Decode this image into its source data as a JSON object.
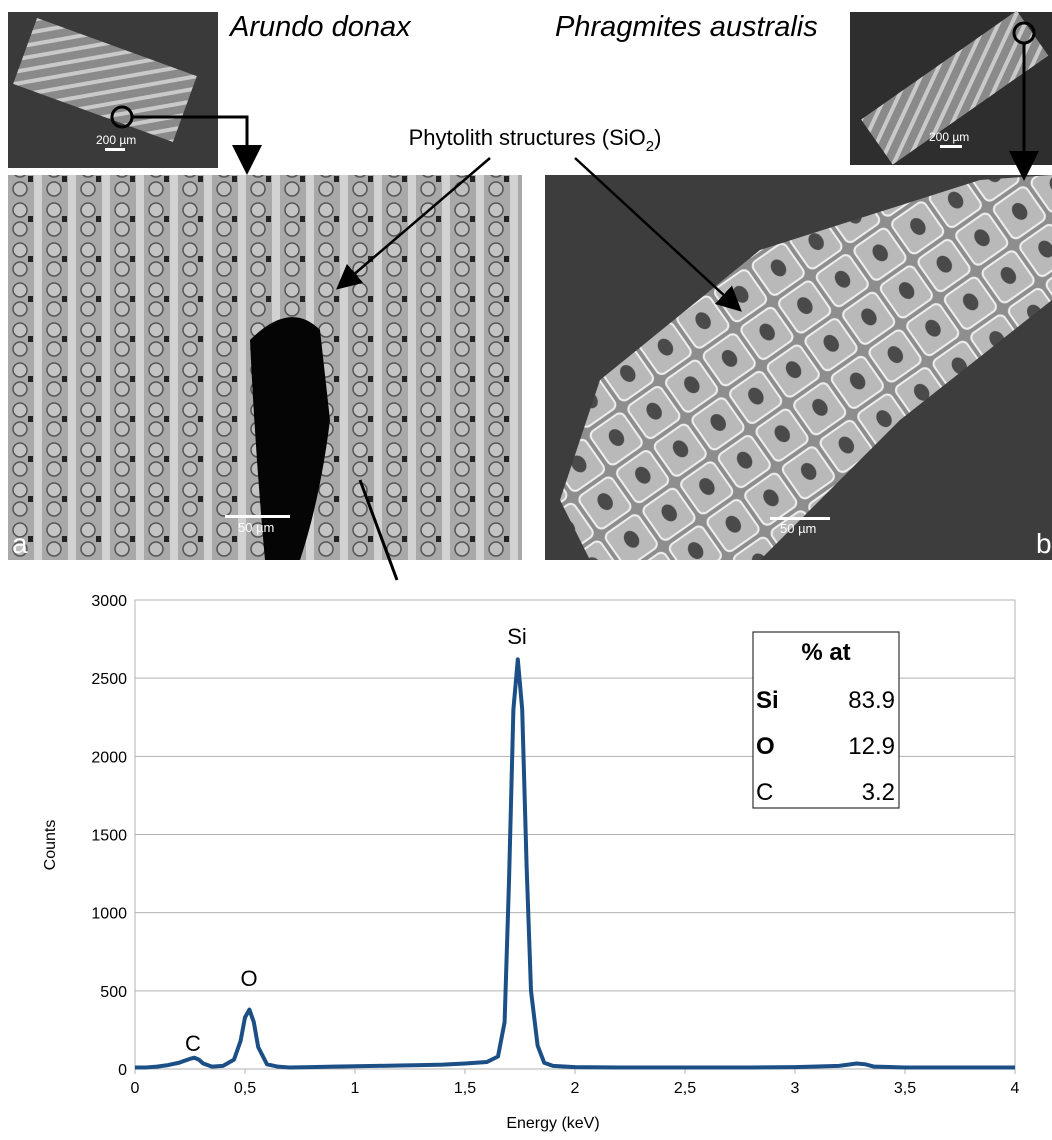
{
  "figure": {
    "species_left": "Arundo donax",
    "species_right": "Phragmites australis",
    "phytolith_label": [
      "Phytolith structures (SiO",
      "2",
      ")"
    ],
    "inset_scale_left": "200 µm",
    "inset_scale_right": "200 µm",
    "scale_a": "50 µm",
    "scale_b": "50 µm",
    "panel_a": "a",
    "panel_b": "b"
  },
  "chart_data": {
    "type": "line",
    "x_label": "Energy (keV)",
    "y_label": "Counts",
    "color": "#1b4f86",
    "x": [
      0,
      0.05,
      0.1,
      0.15,
      0.2,
      0.23,
      0.25,
      0.27,
      0.29,
      0.31,
      0.35,
      0.4,
      0.45,
      0.48,
      0.5,
      0.52,
      0.54,
      0.56,
      0.6,
      0.65,
      0.7,
      0.8,
      0.9,
      1.0,
      1.1,
      1.2,
      1.3,
      1.4,
      1.5,
      1.55,
      1.6,
      1.65,
      1.68,
      1.7,
      1.72,
      1.74,
      1.76,
      1.78,
      1.8,
      1.83,
      1.86,
      1.9,
      2.0,
      2.2,
      2.4,
      2.6,
      2.8,
      3.0,
      3.2,
      3.28,
      3.32,
      3.36,
      3.5,
      3.7,
      4.0
    ],
    "values": [
      10,
      10,
      15,
      25,
      40,
      55,
      65,
      72,
      60,
      35,
      15,
      20,
      60,
      180,
      330,
      380,
      300,
      140,
      30,
      15,
      10,
      12,
      15,
      18,
      20,
      22,
      25,
      28,
      35,
      40,
      45,
      80,
      300,
      1200,
      2300,
      2620,
      2300,
      1300,
      500,
      150,
      40,
      20,
      12,
      10,
      10,
      10,
      10,
      12,
      20,
      35,
      30,
      15,
      10,
      10,
      10
    ],
    "xlim": [
      0,
      4
    ],
    "ylim": [
      0,
      3000
    ],
    "xticks": [
      0,
      {
        "value": 0.5,
        "label": "0,5"
      },
      1,
      {
        "value": 1.5,
        "label": "1,5"
      },
      2,
      {
        "value": 2.5,
        "label": "2,5"
      },
      3,
      {
        "value": 3.5,
        "label": "3,5"
      },
      4
    ],
    "yticks": [
      0,
      500,
      1000,
      1500,
      2000,
      2500,
      3000
    ],
    "grid": true,
    "annotations": [
      "C",
      "O",
      "Si"
    ],
    "composition": {
      "header": "% at",
      "rows": [
        [
          "Si",
          83.9
        ],
        [
          "O",
          12.9
        ],
        [
          "C",
          3.2
        ]
      ]
    }
  }
}
